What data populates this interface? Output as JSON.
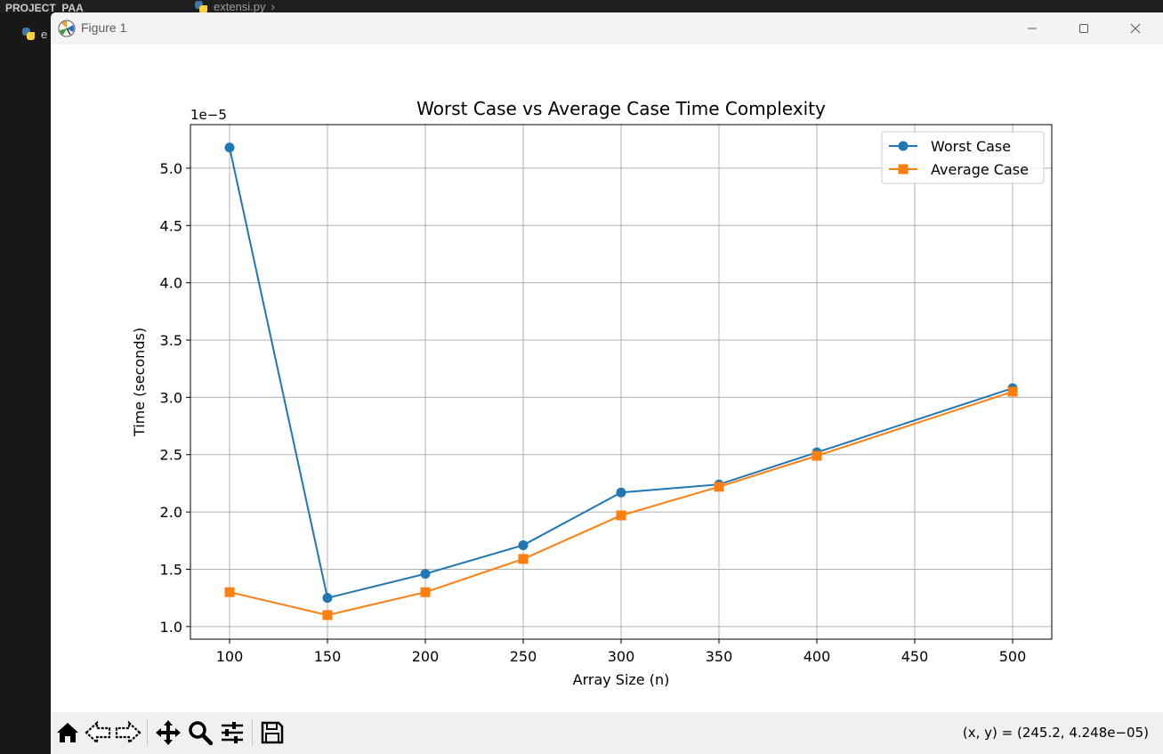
{
  "ide": {
    "project_label": "PROJECT_PAA",
    "tab_label": "extensi.py",
    "file_label": "e"
  },
  "window": {
    "title": "Figure 1"
  },
  "toolbar": {
    "coords_text": "(x, y) = (245.2, 4.248e−05)"
  },
  "chart_data": {
    "type": "line",
    "title": "Worst Case vs Average Case Time Complexity",
    "xlabel": "Array Size (n)",
    "ylabel": "Time (seconds)",
    "y_scale_label": "1e−5",
    "x": [
      100,
      150,
      200,
      250,
      300,
      350,
      400,
      500
    ],
    "xlim": [
      80,
      520
    ],
    "ylim": [
      0.89,
      5.38
    ],
    "xticks": [
      100,
      150,
      200,
      250,
      300,
      350,
      400,
      450,
      500
    ],
    "xtick_labels": [
      "100",
      "150",
      "200",
      "250",
      "300",
      "350",
      "400",
      "450",
      "500"
    ],
    "yticks": [
      1.0,
      1.5,
      2.0,
      2.5,
      3.0,
      3.5,
      4.0,
      4.5,
      5.0
    ],
    "ytick_labels": [
      "1.0",
      "1.5",
      "2.0",
      "2.5",
      "3.0",
      "3.5",
      "4.0",
      "4.5",
      "5.0"
    ],
    "grid": true,
    "legend_position": "top-right",
    "series": [
      {
        "name": "Worst Case",
        "color": "#1f77b4",
        "marker": "circle",
        "values": [
          5.18,
          1.25,
          1.46,
          1.71,
          2.17,
          2.24,
          2.52,
          3.08
        ]
      },
      {
        "name": "Average Case",
        "color": "#ff7f0e",
        "marker": "square",
        "values": [
          1.3,
          1.1,
          1.3,
          1.59,
          1.97,
          2.22,
          2.49,
          3.05
        ]
      }
    ]
  }
}
